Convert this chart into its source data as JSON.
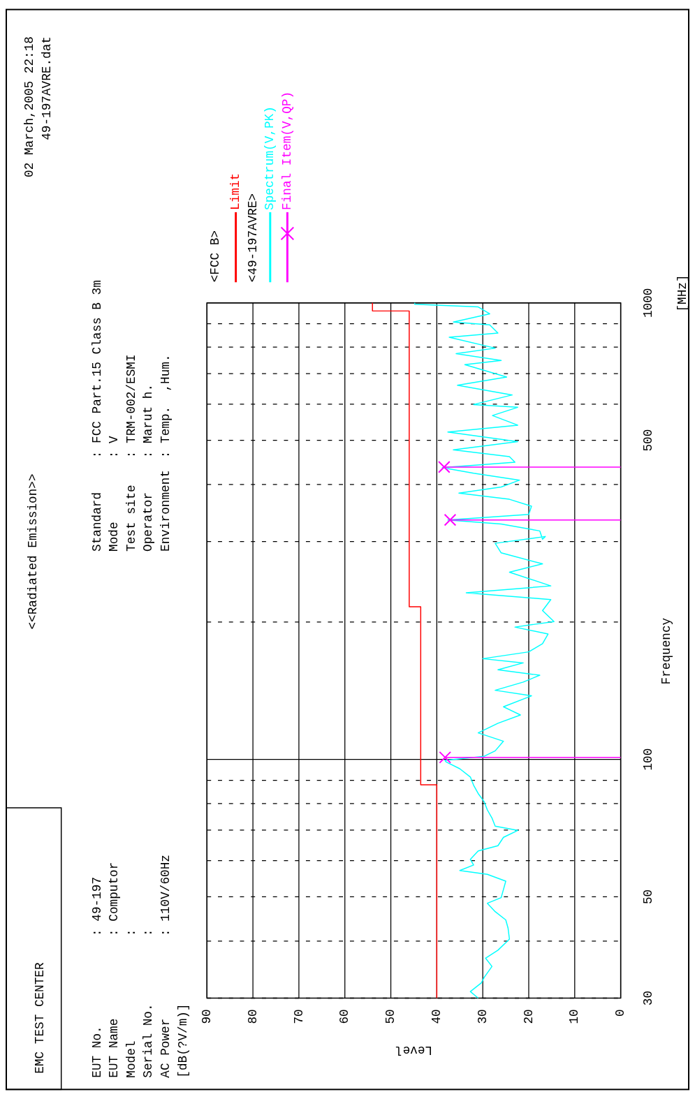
{
  "chart_data": {
    "type": "line",
    "title": "<<Radiated Emission>>",
    "xlabel": "Level",
    "ylabel": "Frequency",
    "annotations": [
      "EMC TEST CENTER",
      "02 March,2005 22:18",
      "49-197AVRE.dat",
      "EUT No.",
      "EUT Name",
      "Model",
      "Serial No.",
      "AC Power",
      ": 49-197",
      ": Computor",
      ":",
      ":",
      ": 110V/60Hz",
      "Standard",
      "Mode",
      "Test site",
      "Operator",
      "Environment",
      ": FCC Part.15 Class B 3m",
      ": V",
      ": TRM-002/ESMI",
      ": Marut h.",
      ": Temp.  ,Hum.",
      "<FCC B>",
      "<49-197AVRE>",
      "[dB(?V/m)]",
      "[MHz]"
    ],
    "log": "y",
    "grid": true,
    "legend": "top left",
    "xlim": [
      90,
      0
    ],
    "xticks": [
      0,
      10,
      20,
      30,
      40,
      50,
      60,
      70,
      80,
      90
    ],
    "ylim": [
      30,
      1000
    ],
    "yticks": [
      30,
      {
        "value": 40,
        "label": null
      },
      50,
      {
        "value": 60,
        "label": null
      },
      {
        "value": 70,
        "label": null
      },
      {
        "value": 80,
        "label": null
      },
      {
        "value": 90,
        "label": null
      },
      100,
      {
        "value": 200,
        "label": null
      },
      {
        "value": 300,
        "label": null
      },
      {
        "value": 400,
        "label": null
      },
      500,
      {
        "value": 600,
        "label": null
      },
      {
        "value": 700,
        "label": null
      },
      {
        "value": 800,
        "label": null
      },
      {
        "value": 900,
        "label": null
      },
      1000
    ],
    "series": [
      {
        "name": "Limit",
        "type": "step",
        "color": "#ff0000",
        "x": [
          40,
          43.5,
          46,
          54,
          54
        ],
        "values": [
          30,
          88,
          216,
          960,
          1000
        ]
      },
      {
        "name": "Spectrum(V,PK)",
        "color": "#00ffff",
        "x": [
          31,
          32.7,
          30.3,
          29.7,
          28,
          29.4,
          26.7,
          24.2,
          24.5,
          25,
          27.3,
          29,
          26,
          25.5,
          25,
          29,
          35,
          32,
          32.7,
          31,
          26.7,
          25.5,
          22.4,
          27.3,
          28,
          29,
          29.7,
          31,
          32,
          32.7,
          35,
          38,
          38.2,
          29.7,
          27.3,
          25.5,
          31,
          26.7,
          21.8,
          25.5,
          19.4,
          27.3,
          21.2,
          17.6,
          26.7,
          21.2,
          30,
          20,
          17,
          15.8,
          23,
          14.5,
          17,
          15.2,
          33.6,
          15.2,
          24.2,
          17,
          26,
          27.3,
          16.4,
          17,
          17.6,
          26,
          37.6,
          20,
          19.4,
          24.2,
          35.2,
          26,
          22,
          32,
          38.8,
          23,
          24.2,
          36.4,
          22.4,
          37.6,
          22.4,
          27.9,
          22.4,
          32,
          23.6,
          35.5,
          24.8,
          33.9,
          26,
          35.8,
          27.3,
          37.3,
          26.7,
          28.5,
          36.4,
          28.5,
          31,
          44.8,
          44.8
        ],
        "values": [
          30,
          31,
          32.4,
          33.3,
          35.2,
          36.7,
          38.2,
          40.4,
          42.7,
          44.5,
          46.4,
          48.4,
          49.8,
          51.9,
          54.1,
          56,
          57.1,
          58.7,
          60.4,
          63,
          64.7,
          67.5,
          69.9,
          71.4,
          74.4,
          77.5,
          80.8,
          84.2,
          87.8,
          91.5,
          95.4,
          98.8,
          99.5,
          101.6,
          104.4,
          109.6,
          114.3,
          120,
          125.1,
          130.4,
          137.8,
          141.7,
          147.7,
          152.9,
          157.2,
          162.7,
          166.2,
          172,
          179.3,
          188.2,
          194.9,
          200.4,
          211.8,
          223.9,
          231.7,
          239.9,
          257.1,
          268.1,
          283.4,
          297.4,
          307.8,
          303.7,
          316.6,
          327.7,
          334.6,
          344,
          358.6,
          371.3,
          383,
          395,
          409,
          423.5,
          435.5,
          447.7,
          460.3,
          476.4,
          496.6,
          521.4,
          539.7,
          566.5,
          590.5,
          598.8,
          628.5,
          659.8,
          687.9,
          732.2,
          747.7,
          774,
          795.8,
          841,
          858.8,
          895,
          907.7,
          946.2,
          979.7,
          993.4,
          1000
        ]
      },
      {
        "name": "Final Item(V,QP)",
        "type": "scatter",
        "marker": "cross",
        "color": "#ff00ff",
        "x": [
          38.2,
          37.1,
          38.4
        ],
        "values": [
          101,
          334.6,
          436.9
        ],
        "xerrors": [
          [
            0,
            38.2
          ],
          [
            0,
            37.1
          ],
          [
            0,
            38.4
          ]
        ]
      }
    ]
  }
}
